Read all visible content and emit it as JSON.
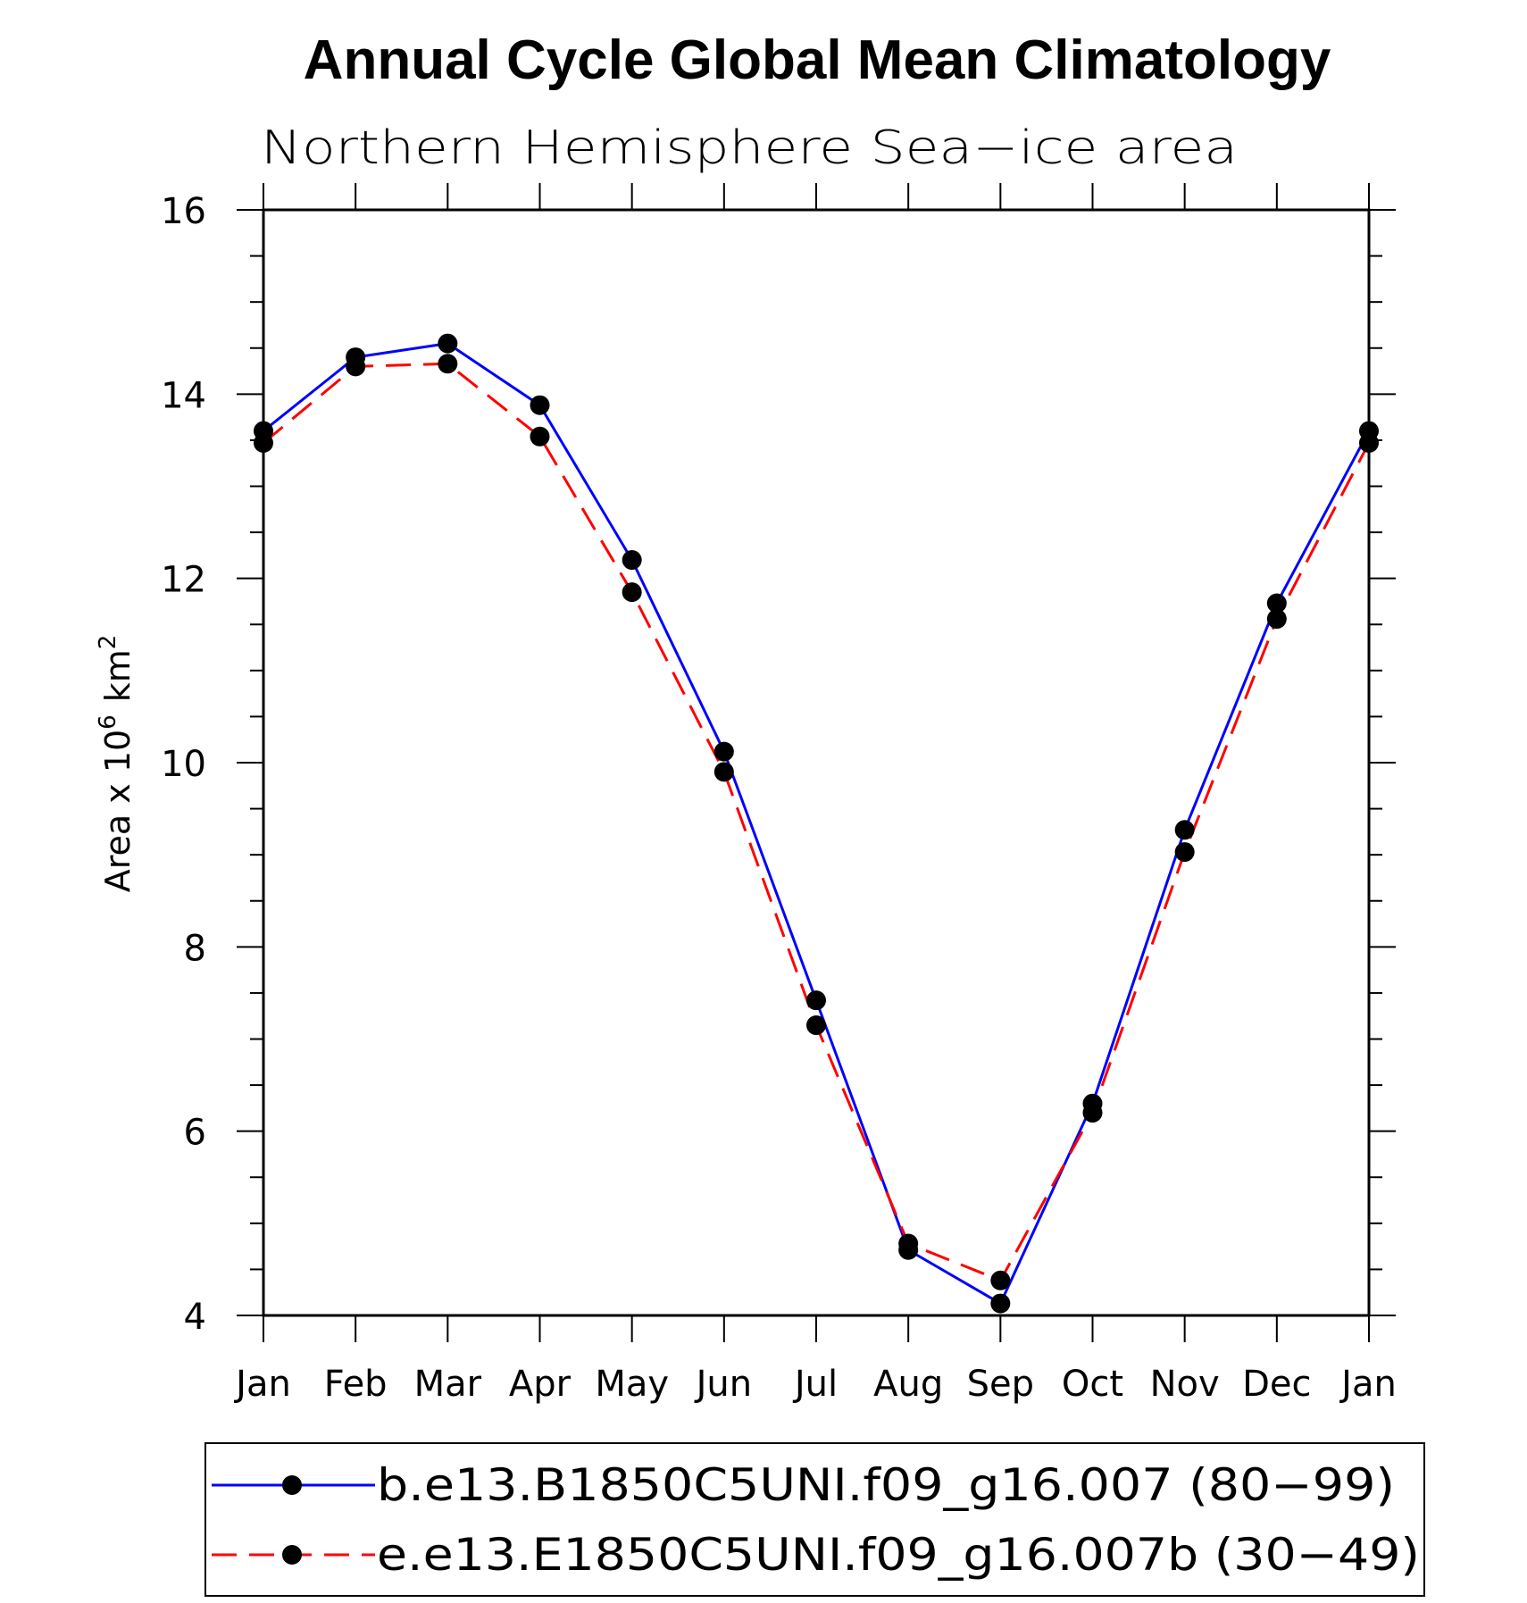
{
  "chart_data": {
    "type": "line",
    "title": "Annual Cycle Global Mean Climatology",
    "subtitle": "Northern Hemisphere Sea−ice area",
    "ylabel": "Area x 10",
    "ylabel_sup": "6",
    "ylabel_unit": "km",
    "ylabel_unit_sup": "2",
    "ylim": [
      4,
      16
    ],
    "yticks": [
      "4",
      "6",
      "8",
      "10",
      "12",
      "14",
      "16"
    ],
    "categories": [
      "Jan",
      "Feb",
      "Mar",
      "Apr",
      "May",
      "Jun",
      "Jul",
      "Aug",
      "Sep",
      "Oct",
      "Nov",
      "Dec",
      "Jan"
    ],
    "series": [
      {
        "name": "b.e13.B1850C5UNI.f09_g16.007 (80−99)",
        "color": "#0000ff",
        "dash": "solid",
        "values": [
          13.6,
          14.4,
          14.55,
          13.88,
          12.2,
          10.12,
          7.42,
          4.71,
          4.13,
          6.3,
          9.27,
          11.73,
          13.6
        ]
      },
      {
        "name": "e.e13.E1850C5UNI.f09_g16.007b (30−49)",
        "color": "#ff0000",
        "dash": "dashed",
        "values": [
          13.47,
          14.3,
          14.33,
          13.54,
          11.85,
          9.9,
          7.15,
          4.78,
          4.38,
          6.2,
          9.03,
          11.56,
          13.47
        ]
      }
    ]
  }
}
